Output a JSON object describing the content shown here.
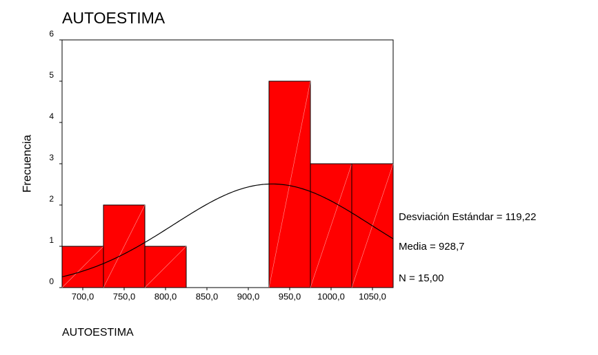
{
  "chart_data": {
    "type": "histogram",
    "title": "AUTOESTIMA",
    "xlabel": "AUTOESTIMA",
    "ylabel": "Frecuencia",
    "bins": [
      675,
      725,
      775,
      825,
      875,
      925,
      975,
      1025,
      1075
    ],
    "values": [
      1,
      2,
      1,
      0,
      0,
      5,
      3,
      3
    ],
    "color": "#ff0000",
    "xlim": [
      675,
      1075
    ],
    "xticks": [
      {
        "value": 700,
        "label": "700,0"
      },
      {
        "value": 750,
        "label": "750,0"
      },
      {
        "value": 800,
        "label": "800,0"
      },
      {
        "value": 850,
        "label": "850,0"
      },
      {
        "value": 900,
        "label": "900,0"
      },
      {
        "value": 950,
        "label": "950,0"
      },
      {
        "value": 1000,
        "label": "1000,0"
      },
      {
        "value": 1050,
        "label": "1050,0"
      }
    ],
    "ylim": [
      0,
      6
    ],
    "yticks": [
      0,
      1,
      2,
      3,
      4,
      5,
      6
    ],
    "annotations": [
      {
        "text": "Desviación Estándar = 119,22",
        "value": 119.22
      },
      {
        "text": "Media = 928,7",
        "value": 928.7
      },
      {
        "text": "N = 15,00",
        "value": 15
      }
    ]
  }
}
